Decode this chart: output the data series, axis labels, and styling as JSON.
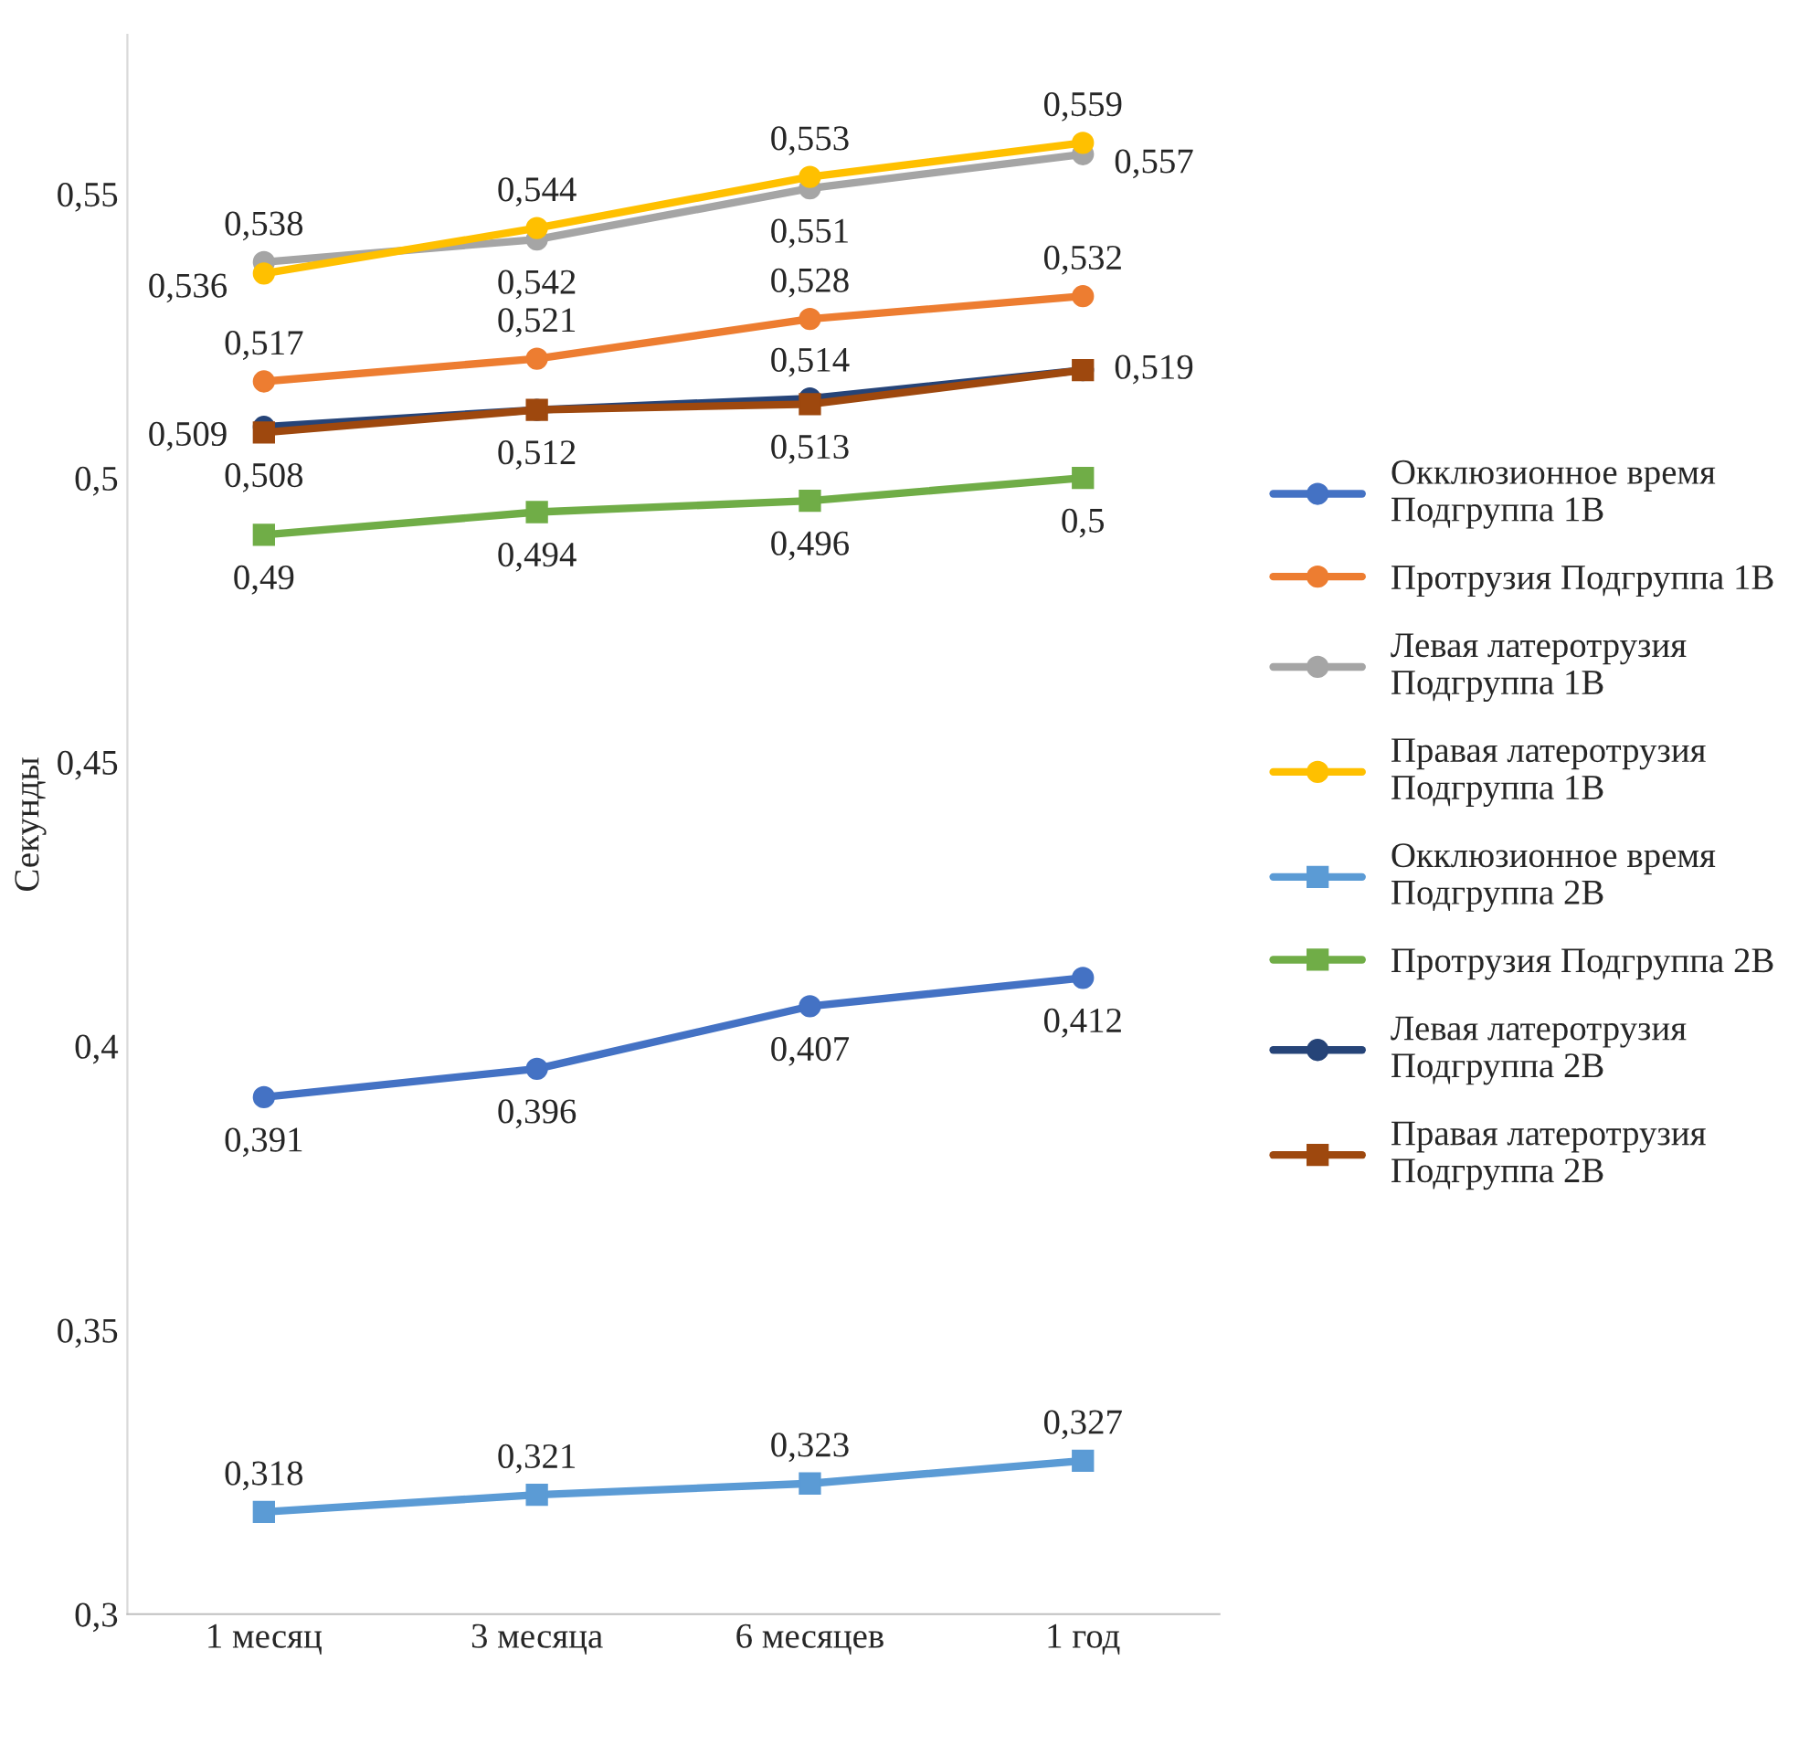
{
  "chart_data": {
    "type": "line",
    "ylabel": "Секунды",
    "categories": [
      "1 месяц",
      "3 месяца",
      "6 месяцев",
      "1 год"
    ],
    "series": [
      {
        "name": "Окклюзионное время Подгруппа 1В",
        "color": "#4472c4",
        "marker": "circle",
        "values": [
          0.391,
          0.396,
          0.407,
          0.412
        ],
        "value_labels": [
          "0,391",
          "0,396",
          "0,407",
          "0,412"
        ]
      },
      {
        "name": "Протрузия Подгруппа 1В",
        "color": "#ed7d31",
        "marker": "circle",
        "values": [
          0.517,
          0.521,
          0.528,
          0.532
        ],
        "value_labels": [
          "0,517",
          "0,521",
          "0,528",
          "0,532"
        ]
      },
      {
        "name": "Левая латеротрузия Подгруппа 1В",
        "color": "#a5a5a5",
        "marker": "circle",
        "values": [
          0.538,
          0.542,
          0.551,
          0.557
        ],
        "value_labels": [
          "0,538",
          "0,542",
          "0,551",
          "0,557"
        ]
      },
      {
        "name": "Правая латеротрузия Подгруппа 1В",
        "color": "#ffc000",
        "marker": "circle",
        "values": [
          0.536,
          0.544,
          0.553,
          0.559
        ],
        "value_labels": [
          "0,536",
          "0,544",
          "0,553",
          "0,559"
        ]
      },
      {
        "name": "Окклюзионное время Подгруппа 2В",
        "color": "#5b9bd5",
        "marker": "square",
        "values": [
          0.318,
          0.321,
          0.323,
          0.327
        ],
        "value_labels": [
          "0,318",
          "0,321",
          "0,323",
          "0,327"
        ]
      },
      {
        "name": "Протрузия Подгруппа 2В",
        "color": "#70ad47",
        "marker": "square",
        "values": [
          0.49,
          0.494,
          0.496,
          0.5
        ],
        "value_labels": [
          "0,49",
          "0,494",
          "0,496",
          "0,5"
        ]
      },
      {
        "name": "Левая латеротрузия Подгруппа 2В",
        "color": "#264478",
        "marker": "circle",
        "values": [
          0.509,
          0.512,
          0.514,
          0.519
        ],
        "value_labels": [
          "0,509",
          "0,512",
          "0,514",
          "0,519"
        ]
      },
      {
        "name": "Правая латеротрузия Подгруппа 2В",
        "color": "#9e480e",
        "marker": "square",
        "values": [
          0.508,
          0.512,
          0.513,
          0.519
        ],
        "value_labels": [
          "0,508",
          null,
          "0,513",
          null
        ]
      }
    ],
    "ylim": [
      0.3,
      0.578
    ],
    "yticks": [
      {
        "value": 0.3,
        "label": "0,3"
      },
      {
        "value": 0.35,
        "label": "0,35"
      },
      {
        "value": 0.4,
        "label": "0,4"
      },
      {
        "value": 0.45,
        "label": "0,45"
      },
      {
        "value": 0.5,
        "label": "0,5"
      },
      {
        "value": 0.55,
        "label": "0,55"
      }
    ],
    "grid": false,
    "legend": "right"
  }
}
